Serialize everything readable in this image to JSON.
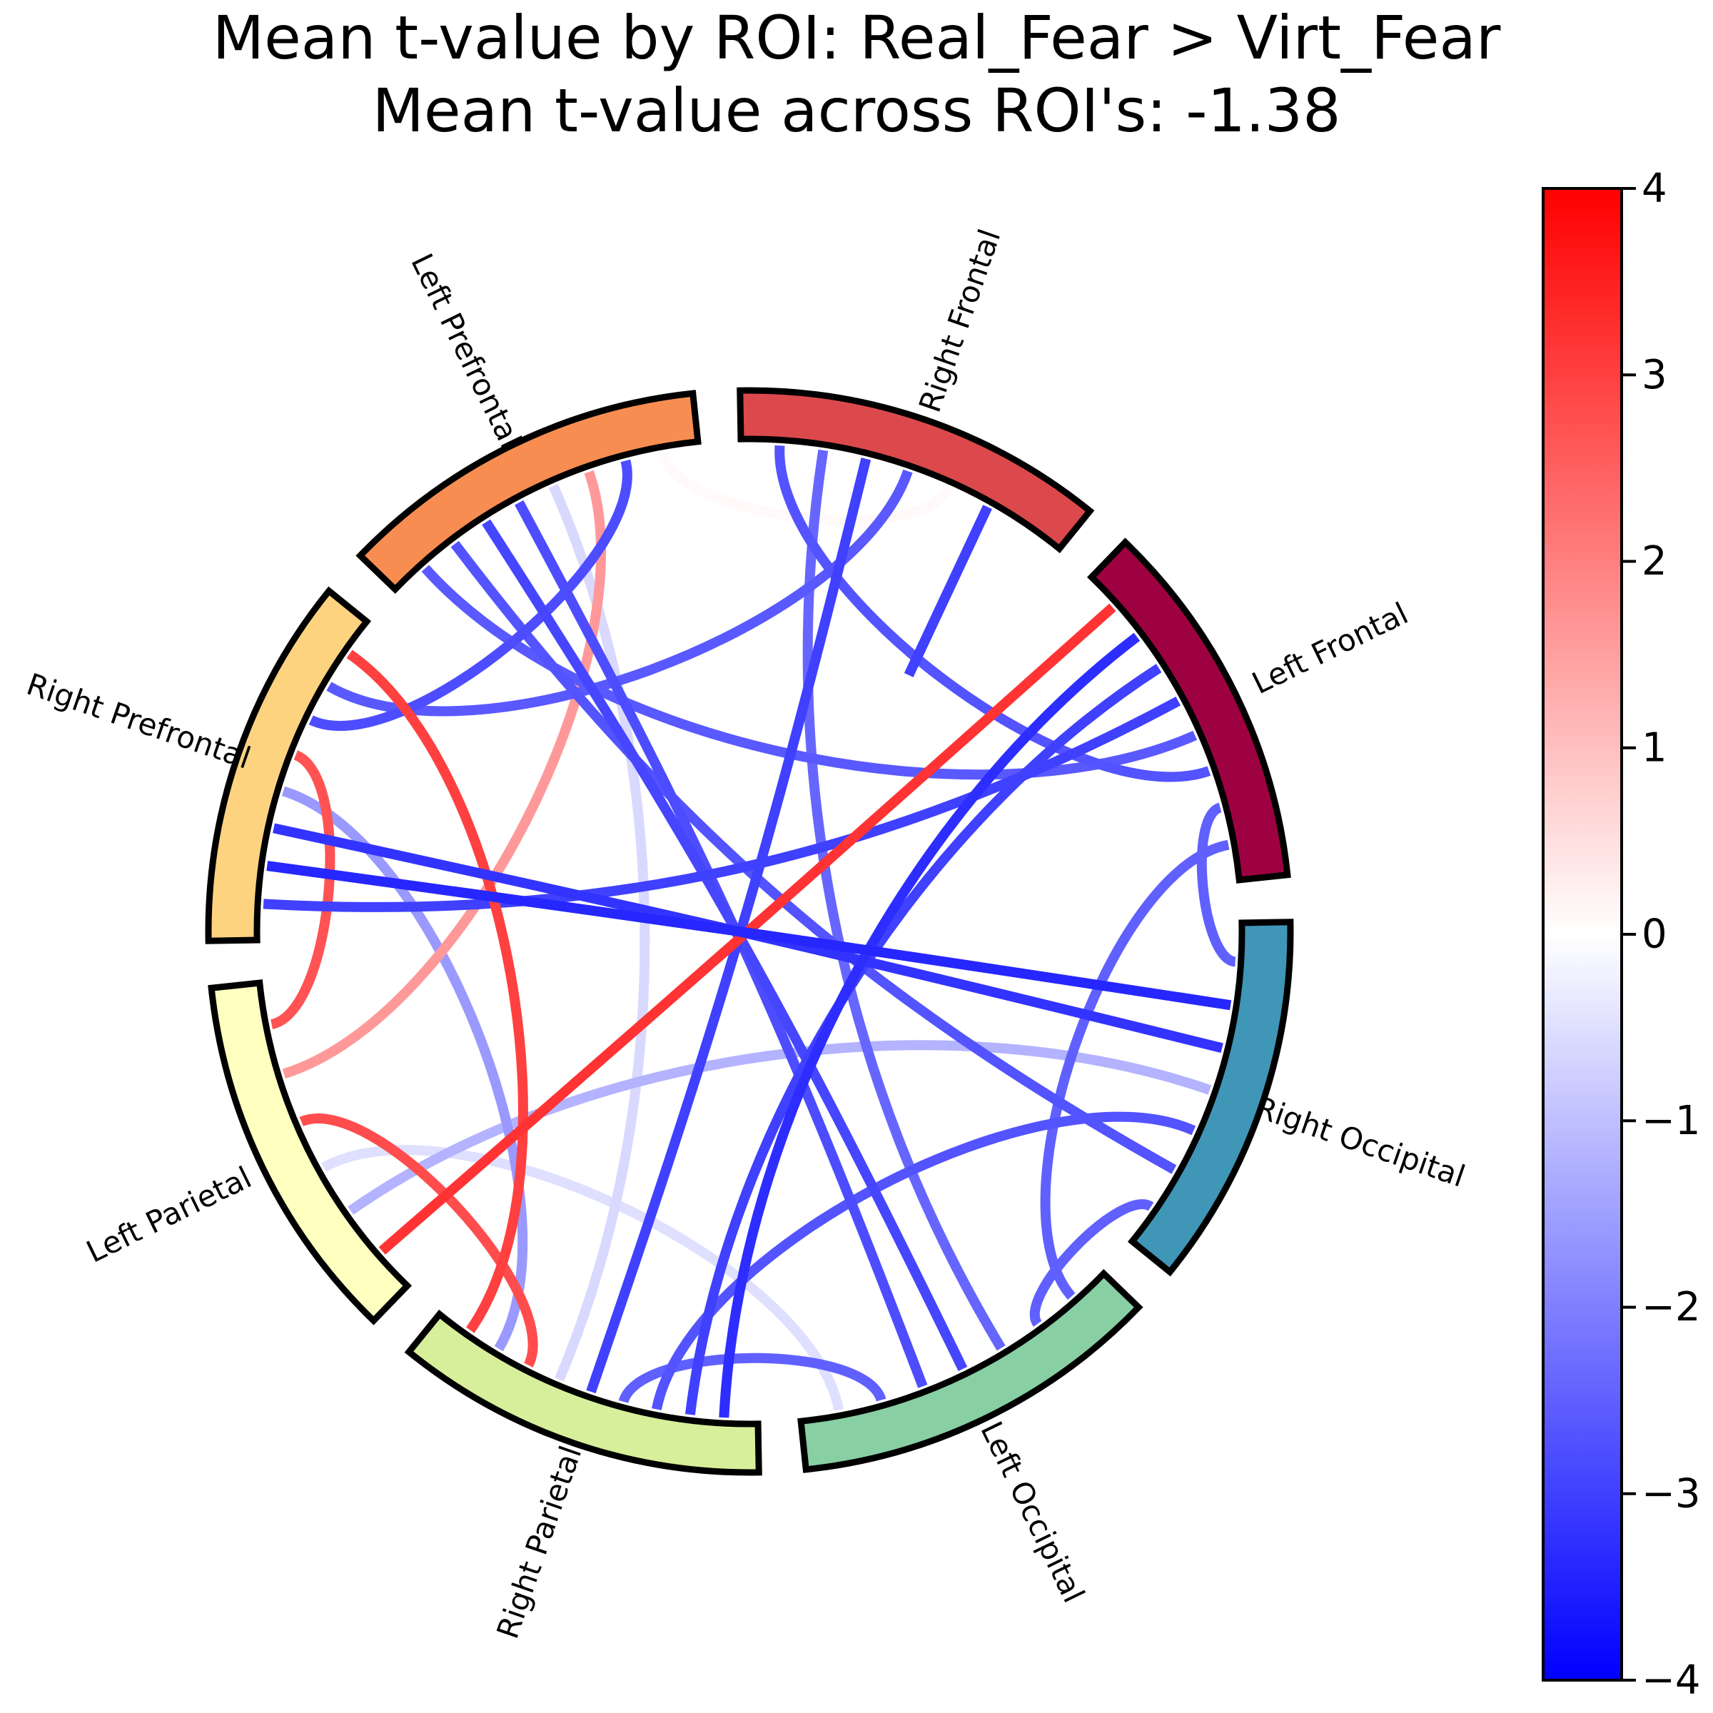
{
  "chart_data": {
    "type": "chord",
    "title": "Mean t-value by ROI: Real_Fear > Virt_Fear",
    "subtitle": "Mean t-value across ROI's: -1.38",
    "nodes": [
      {
        "label": "Left Frontal",
        "color": "#9e0142"
      },
      {
        "label": "Right Occipital",
        "color": "#3f96b7"
      },
      {
        "label": "Left Occipital",
        "color": "#88cfa4"
      },
      {
        "label": "Right Parietal",
        "color": "#d7ef9b"
      },
      {
        "label": "Left Parietal",
        "color": "#ffffbf"
      },
      {
        "label": "Right Prefrontal",
        "color": "#fdd380"
      },
      {
        "label": "Left Prefrontal",
        "color": "#f88d52"
      },
      {
        "label": "Right Frontal",
        "color": "#dc494c"
      }
    ],
    "edges": [
      {
        "from": "Left Frontal",
        "to": "Left Parietal",
        "value": 3.2
      },
      {
        "from": "Left Frontal",
        "to": "Right Parietal",
        "value": -3.3
      },
      {
        "from": "Left Frontal",
        "to": "Right Parietal",
        "value": -3.0
      },
      {
        "from": "Left Frontal",
        "to": "Right Prefrontal",
        "value": -3.0
      },
      {
        "from": "Left Frontal",
        "to": "Left Prefrontal",
        "value": -2.6
      },
      {
        "from": "Left Frontal",
        "to": "Right Frontal",
        "value": -2.7
      },
      {
        "from": "Left Frontal",
        "to": "Right Occipital",
        "value": -2.5
      },
      {
        "from": "Left Frontal",
        "to": "Left Occipital",
        "value": -2.5
      },
      {
        "from": "Right Occipital",
        "to": "Right Prefrontal",
        "value": -3.4
      },
      {
        "from": "Right Occipital",
        "to": "Right Prefrontal",
        "value": -3.2
      },
      {
        "from": "Right Occipital",
        "to": "Left Parietal",
        "value": -1.2
      },
      {
        "from": "Right Occipital",
        "to": "Right Parietal",
        "value": -2.7
      },
      {
        "from": "Right Occipital",
        "to": "Left Prefrontal",
        "value": -2.7
      },
      {
        "from": "Right Occipital",
        "to": "Left Occipital",
        "value": -2.5
      },
      {
        "from": "Left Occipital",
        "to": "Right Frontal",
        "value": -2.4
      },
      {
        "from": "Left Occipital",
        "to": "Left Prefrontal",
        "value": -2.9
      },
      {
        "from": "Left Occipital",
        "to": "Left Prefrontal",
        "value": -2.8
      },
      {
        "from": "Left Occipital",
        "to": "Right Parietal",
        "value": -2.5
      },
      {
        "from": "Left Occipital",
        "to": "Left Parietal",
        "value": -0.5
      },
      {
        "from": "Right Parietal",
        "to": "Right Frontal",
        "value": -3.0
      },
      {
        "from": "Right Parietal",
        "to": "Left Prefrontal",
        "value": -0.6
      },
      {
        "from": "Right Parietal",
        "to": "Left Parietal",
        "value": 2.8
      },
      {
        "from": "Right Parietal",
        "to": "Right Prefrontal",
        "value": -1.6
      },
      {
        "from": "Left Parietal",
        "to": "Left Prefrontal",
        "value": 1.6
      },
      {
        "from": "Left Parietal",
        "to": "Right Prefrontal",
        "value": 2.7
      },
      {
        "from": "Right Prefrontal",
        "to": "Left Prefrontal",
        "value": -2.8
      },
      {
        "from": "Right Prefrontal",
        "to": "Right Frontal",
        "value": -2.6
      },
      {
        "from": "Right Prefrontal",
        "to": "Right Parietal",
        "value": 3.0
      },
      {
        "from": "Left Prefrontal",
        "to": "Right Frontal",
        "value": 0.1
      },
      {
        "from": "Right Frontal",
        "to": "Right Frontal",
        "value": -3.0
      }
    ],
    "colorbar": {
      "min": -4,
      "max": 4,
      "ticks": [
        "4",
        "3",
        "2",
        "1",
        "0",
        "−1",
        "−2",
        "−3",
        "−4"
      ],
      "colormap": "bwr",
      "low_color": "#0000ff",
      "mid_color": "#ffffff",
      "high_color": "#ff0000"
    }
  }
}
